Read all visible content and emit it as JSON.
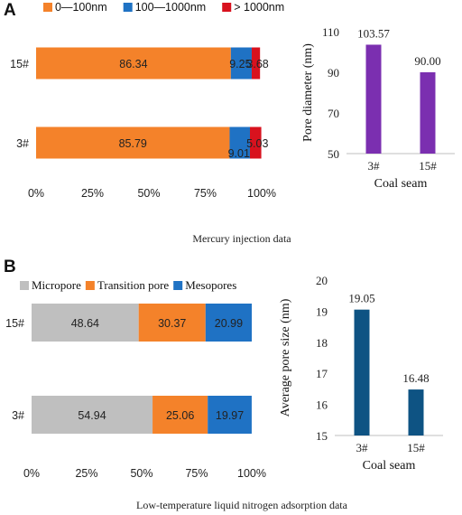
{
  "panels": {
    "a": {
      "letter": "A",
      "caption": "Mercury injection data"
    },
    "b": {
      "letter": "B",
      "caption": "Low-temperature liquid nitrogen adsorption data"
    }
  },
  "chart_data": [
    {
      "id": "a-left",
      "type": "bar",
      "orientation": "horizontal",
      "stacked": true,
      "categories": [
        "15#",
        "3#"
      ],
      "series": [
        {
          "name": "0—100nm",
          "values": [
            86.34,
            85.79
          ],
          "color": "#F4822A"
        },
        {
          "name": "100—1000nm",
          "values": [
            9.25,
            9.01
          ],
          "color": "#1F72C4"
        },
        {
          "name": "> 1000nm",
          "values": [
            3.68,
            5.03
          ],
          "color": "#D8121E"
        }
      ],
      "xlim": [
        0,
        100
      ],
      "xticks": [
        "0%",
        "25%",
        "50%",
        "75%",
        "100%"
      ],
      "legend_position": "top",
      "grid": false
    },
    {
      "id": "a-right",
      "type": "bar",
      "categories": [
        "3#",
        "15#"
      ],
      "values": [
        103.57,
        90.0
      ],
      "value_labels": [
        "103.57",
        "90.00"
      ],
      "color": "#7B2FB0",
      "xlabel": "Coal seam",
      "ylabel": "Pore diameter (nm)",
      "ylim": [
        50,
        110
      ],
      "yticks": [
        "50",
        "70",
        "90",
        "110"
      ],
      "grid": false
    },
    {
      "id": "b-left",
      "type": "bar",
      "orientation": "horizontal",
      "stacked": true,
      "categories": [
        "15#",
        "3#"
      ],
      "series": [
        {
          "name": "Micropore",
          "values": [
            48.64,
            54.94
          ],
          "color": "#BFBFBF"
        },
        {
          "name": "Transition pore",
          "values": [
            30.37,
            25.06
          ],
          "color": "#F4822A"
        },
        {
          "name": "Mesopores",
          "values": [
            20.99,
            19.97
          ],
          "color": "#1F72C4"
        }
      ],
      "xlim": [
        0,
        100
      ],
      "xticks": [
        "0%",
        "25%",
        "50%",
        "75%",
        "100%"
      ],
      "legend_position": "top",
      "grid": false
    },
    {
      "id": "b-right",
      "type": "bar",
      "categories": [
        "3#",
        "15#"
      ],
      "values": [
        19.05,
        16.48
      ],
      "value_labels": [
        "19.05",
        "16.48"
      ],
      "color": "#0E5383",
      "xlabel": "Coal seam",
      "ylabel": "Average pore size (nm)",
      "ylim": [
        15,
        20
      ],
      "yticks": [
        "15",
        "16",
        "17",
        "18",
        "19",
        "20"
      ],
      "grid": false
    }
  ]
}
